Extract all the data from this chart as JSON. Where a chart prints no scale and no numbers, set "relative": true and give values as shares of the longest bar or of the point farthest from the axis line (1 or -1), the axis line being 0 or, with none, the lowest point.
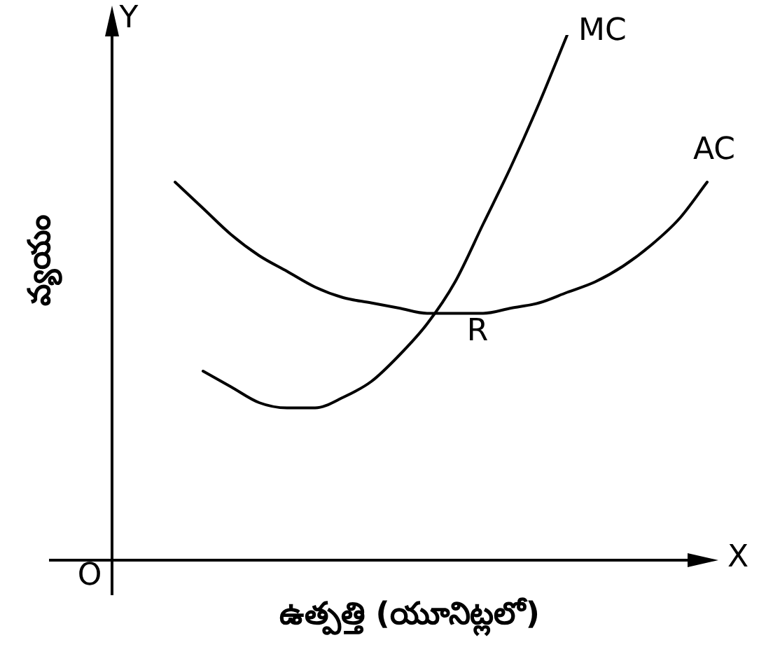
{
  "chart_data": {
    "type": "line",
    "relative": true,
    "xlabel": "ఉత్పత్తి (యూనిట్లలో)",
    "ylabel": "వ్యయం",
    "legend": false,
    "grid": false,
    "marker": "none",
    "line_style": "solid",
    "tick_labels": false,
    "categories": [
      null,
      null,
      null,
      null,
      null,
      null,
      null,
      null,
      null,
      null,
      null,
      null,
      null,
      null,
      null,
      null,
      null,
      null,
      null,
      null
    ],
    "series": [
      {
        "name": "MC",
        "color": "#000000",
        "values": [
          null,
          0.36,
          0.33,
          0.3,
          0.29,
          0.29,
          0.31,
          0.34,
          0.39,
          0.45,
          0.53,
          0.64,
          0.75,
          0.87,
          1.0,
          null,
          null,
          null,
          null,
          null
        ]
      },
      {
        "name": "AC",
        "color": "#000000",
        "values": [
          0.72,
          0.67,
          0.62,
          0.58,
          0.55,
          0.52,
          0.5,
          0.49,
          0.48,
          0.47,
          0.47,
          0.47,
          0.48,
          0.49,
          0.51,
          0.53,
          0.56,
          0.6,
          0.65,
          0.72
        ]
      }
    ],
    "annotations": [
      "Y",
      "X",
      "O",
      "R"
    ]
  }
}
